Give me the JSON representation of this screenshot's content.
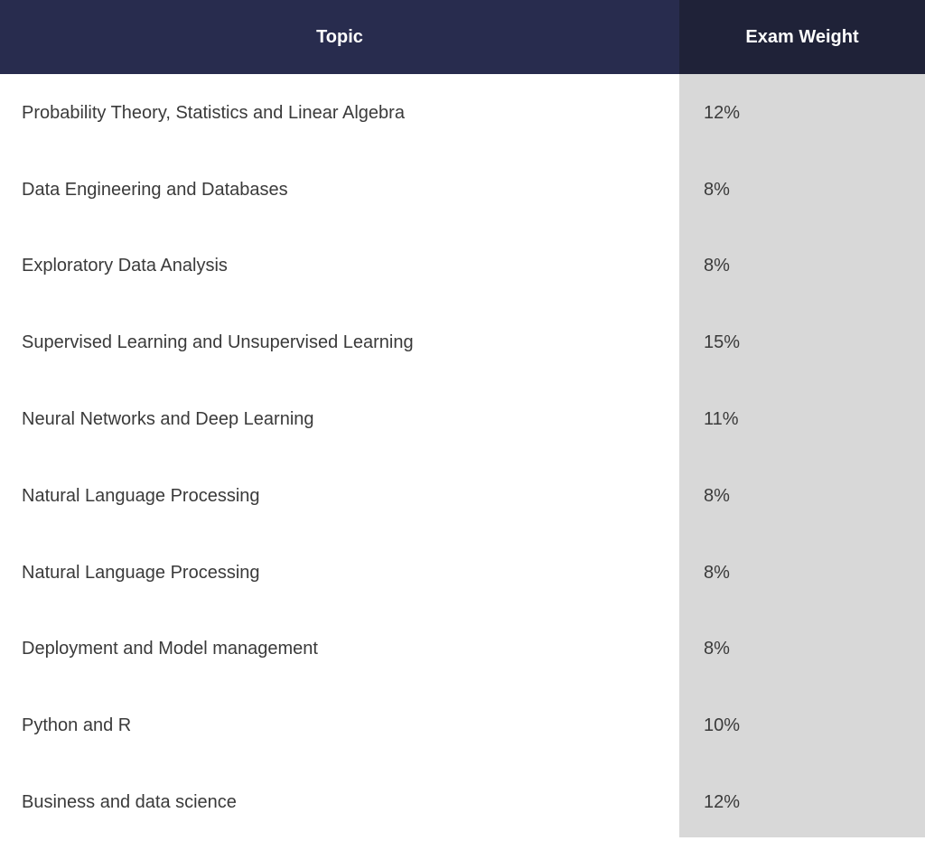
{
  "header": {
    "topic_label": "Topic",
    "weight_label": "Exam Weight"
  },
  "rows": [
    {
      "topic": "Probability Theory, Statistics and Linear Algebra",
      "weight": "12%"
    },
    {
      "topic": "Data Engineering and Databases",
      "weight": "8%"
    },
    {
      "topic": "Exploratory Data Analysis",
      "weight": "8%"
    },
    {
      "topic": "Supervised Learning and Unsupervised Learning",
      "weight": "15%"
    },
    {
      "topic": "Neural Networks and Deep Learning",
      "weight": "11%"
    },
    {
      "topic": "Natural Language Processing",
      "weight": "8%"
    },
    {
      "topic": "Natural Language Processing",
      "weight": "8%"
    },
    {
      "topic": "Deployment and Model management",
      "weight": "8%"
    },
    {
      "topic": "Python and R",
      "weight": "10%"
    },
    {
      "topic": "Business and data science",
      "weight": "12%"
    }
  ],
  "colors": {
    "header_topic_bg": "#282c4e",
    "header_weight_bg": "#1f2238",
    "weight_column_bg": "#d8d8d8",
    "text": "#3a3a3a"
  }
}
